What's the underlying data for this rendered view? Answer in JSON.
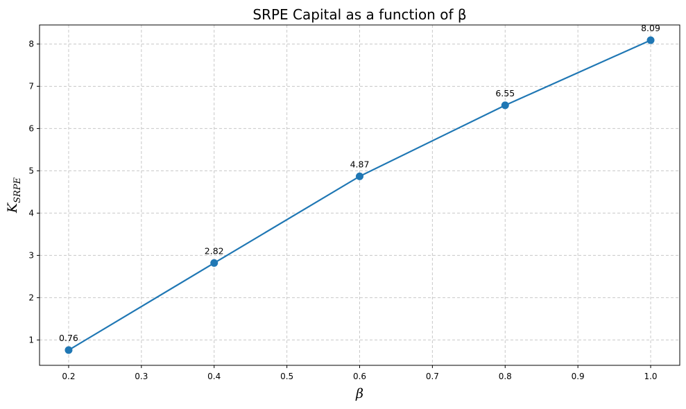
{
  "chart_data": {
    "type": "line",
    "title": "SRPE Capital as a function of β",
    "xlabel": "β",
    "ylabel": {
      "main": "K",
      "subscript": "SRPE"
    },
    "x": [
      0.2,
      0.4,
      0.6,
      0.8,
      1.0
    ],
    "series": [
      {
        "values": [
          0.76,
          2.82,
          4.87,
          6.55,
          8.09
        ],
        "color": "#1f77b4"
      }
    ],
    "data_labels": [
      "0.76",
      "2.82",
      "4.87",
      "6.55",
      "8.09"
    ],
    "xlim": [
      0.16,
      1.04
    ],
    "ylim": [
      0.4,
      8.45
    ],
    "xticks": [
      0.2,
      0.3,
      0.4,
      0.5,
      0.6,
      0.7,
      0.8,
      0.9,
      1.0
    ],
    "xtick_labels": [
      "0.2",
      "0.3",
      "0.4",
      "0.5",
      "0.6",
      "0.7",
      "0.8",
      "0.9",
      "1.0"
    ],
    "yticks": [
      1,
      2,
      3,
      4,
      5,
      6,
      7,
      8
    ],
    "ytick_labels": [
      "1",
      "2",
      "3",
      "4",
      "5",
      "6",
      "7",
      "8"
    ],
    "grid": true,
    "grid_style": "dashed",
    "colors": {
      "line": "#1f77b4",
      "grid": "#c8c8c8"
    }
  }
}
